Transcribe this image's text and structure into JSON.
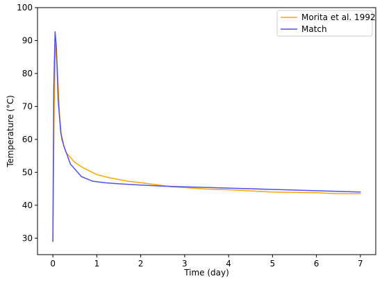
{
  "chart_data": {
    "type": "line",
    "title": "",
    "xlabel": "Time (day)",
    "ylabel": "Temperature (°C)",
    "xlim": [
      -0.35,
      7.35
    ],
    "ylim": [
      25,
      100
    ],
    "xticks": [
      0,
      1,
      2,
      3,
      4,
      5,
      6,
      7
    ],
    "yticks": [
      30,
      40,
      50,
      60,
      70,
      80,
      90,
      100
    ],
    "grid": false,
    "legend_position": "top-right",
    "series": [
      {
        "name": "Morita et al. 1992",
        "color": "#ffa500",
        "x": [
          0.0,
          0.03,
          0.06,
          0.1,
          0.15,
          0.2,
          0.3,
          0.5,
          0.7,
          1.0,
          1.3,
          1.7,
          2.2,
          2.7,
          3.5,
          4.0,
          5.0,
          6.0,
          6.5,
          7.0
        ],
        "y": [
          29,
          70,
          89,
          82,
          68,
          60,
          56,
          53,
          51.3,
          49.3,
          48.3,
          47.3,
          46.5,
          45.6,
          44.9,
          44.7,
          44.0,
          43.8,
          43.5,
          43.5
        ]
      },
      {
        "name": "Match",
        "color": "#5050ee",
        "x": [
          0.0,
          0.02,
          0.05,
          0.08,
          0.12,
          0.18,
          0.25,
          0.4,
          0.65,
          0.9,
          1.2,
          1.5,
          2.0,
          2.5,
          3.0,
          4.0,
          5.0,
          6.0,
          7.0
        ],
        "y": [
          29,
          75,
          92.7,
          88,
          72,
          62,
          58,
          52.5,
          48.7,
          47.3,
          46.8,
          46.5,
          46.1,
          45.8,
          45.6,
          45.2,
          44.8,
          44.4,
          44.0
        ]
      }
    ]
  }
}
